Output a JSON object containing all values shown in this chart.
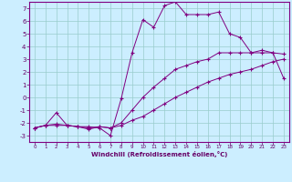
{
  "xlabel": "Windchill (Refroidissement éolien,°C)",
  "bg_color": "#cceeff",
  "line_color": "#800080",
  "grid_color": "#99cccc",
  "xlim": [
    -0.5,
    23.5
  ],
  "ylim": [
    -3.5,
    7.5
  ],
  "xticks": [
    0,
    1,
    2,
    3,
    4,
    5,
    6,
    7,
    8,
    9,
    10,
    11,
    12,
    13,
    14,
    15,
    16,
    17,
    18,
    19,
    20,
    21,
    22,
    23
  ],
  "yticks": [
    -3,
    -2,
    -1,
    0,
    1,
    2,
    3,
    4,
    5,
    6,
    7
  ],
  "line1_x": [
    0,
    1,
    2,
    3,
    4,
    5,
    6,
    7,
    8,
    9,
    10,
    11,
    12,
    13,
    14,
    15,
    16,
    17,
    18,
    19,
    20,
    21,
    22,
    23
  ],
  "line1_y": [
    -2.4,
    -2.2,
    -2.2,
    -2.2,
    -2.3,
    -2.3,
    -2.4,
    -3.0,
    -0.1,
    3.5,
    6.1,
    5.5,
    7.2,
    7.5,
    6.5,
    6.5,
    6.5,
    6.7,
    5.0,
    4.7,
    3.5,
    3.7,
    3.5,
    1.5
  ],
  "line2_x": [
    0,
    1,
    2,
    3,
    4,
    5,
    6,
    7,
    8,
    9,
    10,
    11,
    12,
    13,
    14,
    15,
    16,
    17,
    18,
    19,
    20,
    21,
    22,
    23
  ],
  "line2_y": [
    -2.4,
    -2.2,
    -1.2,
    -2.2,
    -2.3,
    -2.5,
    -2.3,
    -2.4,
    -2.0,
    -1.0,
    0.0,
    0.8,
    1.5,
    2.2,
    2.5,
    2.8,
    3.0,
    3.5,
    3.5,
    3.5,
    3.5,
    3.5,
    3.5,
    3.4
  ],
  "line3_x": [
    0,
    1,
    2,
    3,
    4,
    5,
    6,
    7,
    8,
    9,
    10,
    11,
    12,
    13,
    14,
    15,
    16,
    17,
    18,
    19,
    20,
    21,
    22,
    23
  ],
  "line3_y": [
    -2.4,
    -2.2,
    -2.1,
    -2.2,
    -2.3,
    -2.4,
    -2.3,
    -2.4,
    -2.2,
    -1.8,
    -1.5,
    -1.0,
    -0.5,
    0.0,
    0.4,
    0.8,
    1.2,
    1.5,
    1.8,
    2.0,
    2.2,
    2.5,
    2.8,
    3.0
  ]
}
